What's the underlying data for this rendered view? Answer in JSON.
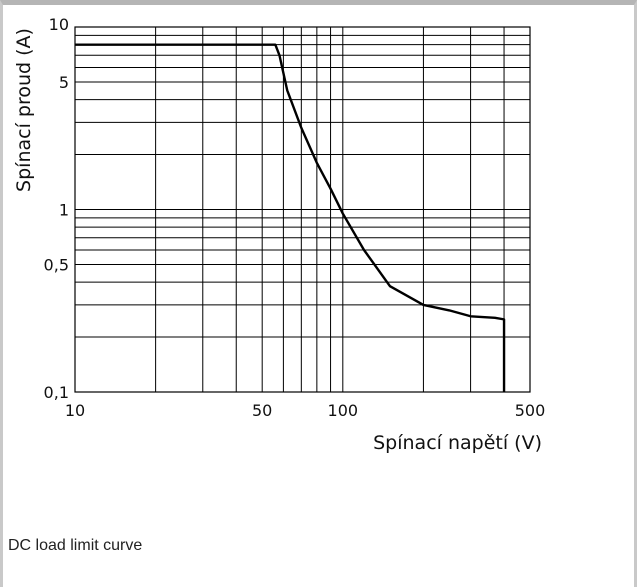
{
  "chart_data": {
    "type": "line",
    "title": "",
    "xlabel": "Spínací napětí (V)",
    "ylabel": "Spínací proud (A)",
    "x_scale": "log",
    "y_scale": "log",
    "xlim": [
      10,
      500
    ],
    "ylim": [
      0.1,
      10
    ],
    "x_ticks": [
      {
        "value": 10,
        "label": "10"
      },
      {
        "value": 50,
        "label": "50"
      },
      {
        "value": 100,
        "label": "100"
      },
      {
        "value": 500,
        "label": "500"
      }
    ],
    "y_ticks": [
      {
        "value": 0.1,
        "label": "0,1"
      },
      {
        "value": 0.5,
        "label": "0,5"
      },
      {
        "value": 1,
        "label": "1"
      },
      {
        "value": 5,
        "label": "5"
      },
      {
        "value": 10,
        "label": "10"
      }
    ],
    "grid": true,
    "series": [
      {
        "color": "#000000",
        "x": [
          10,
          56,
          58,
          62,
          70,
          80,
          90,
          100,
          120,
          150,
          200,
          250,
          300,
          370,
          400,
          400
        ],
        "y": [
          8,
          8,
          7,
          4.5,
          2.8,
          1.8,
          1.3,
          0.95,
          0.6,
          0.38,
          0.3,
          0.28,
          0.26,
          0.255,
          0.25,
          0.1
        ]
      }
    ]
  },
  "caption": "DC load limit curve"
}
